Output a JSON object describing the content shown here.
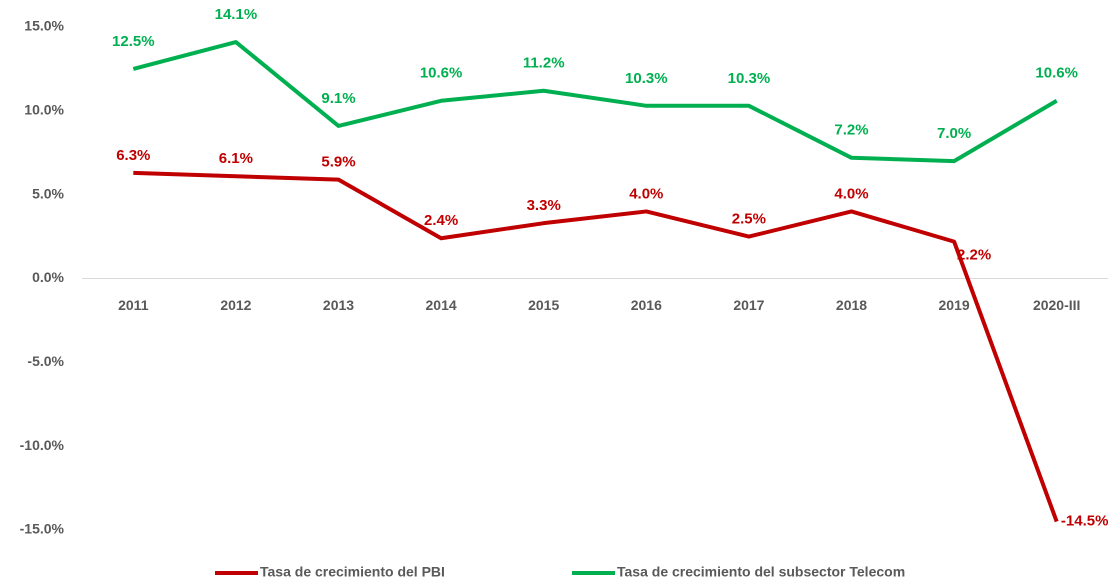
{
  "chart_data": {
    "type": "line",
    "categories": [
      "2011",
      "2012",
      "2013",
      "2014",
      "2015",
      "2016",
      "2017",
      "2018",
      "2019",
      "2020-III"
    ],
    "series": [
      {
        "name": "Tasa de crecimiento del PBI",
        "color": "#c00000",
        "values": [
          6.3,
          6.1,
          5.9,
          2.4,
          3.3,
          4.0,
          2.5,
          4.0,
          2.2,
          -14.5
        ],
        "value_labels": [
          "6.3%",
          "6.1%",
          "5.9%",
          "2.4%",
          "3.3%",
          "4.0%",
          "2.5%",
          "4.0%",
          "2.2%",
          "-14.5%"
        ]
      },
      {
        "name": "Tasa de crecimiento del subsector Telecom",
        "color": "#00b050",
        "values": [
          12.5,
          14.1,
          9.1,
          10.6,
          11.2,
          10.3,
          10.3,
          7.2,
          7.0,
          10.6
        ],
        "value_labels": [
          "12.5%",
          "14.1%",
          "9.1%",
          "10.6%",
          "11.2%",
          "10.3%",
          "10.3%",
          "7.2%",
          "7.0%",
          "10.6%"
        ]
      }
    ],
    "ylim": [
      -15,
      15
    ],
    "yticks": [
      {
        "value": -15,
        "label": "-15.0%"
      },
      {
        "value": -10,
        "label": "-10.0%"
      },
      {
        "value": -5,
        "label": "-5.0%"
      },
      {
        "value": 0,
        "label": "0.0%"
      },
      {
        "value": 5,
        "label": "5.0%"
      },
      {
        "value": 10,
        "label": "10.0%"
      },
      {
        "value": 15,
        "label": "15.0%"
      }
    ],
    "grid": false,
    "legend": "bottom"
  }
}
